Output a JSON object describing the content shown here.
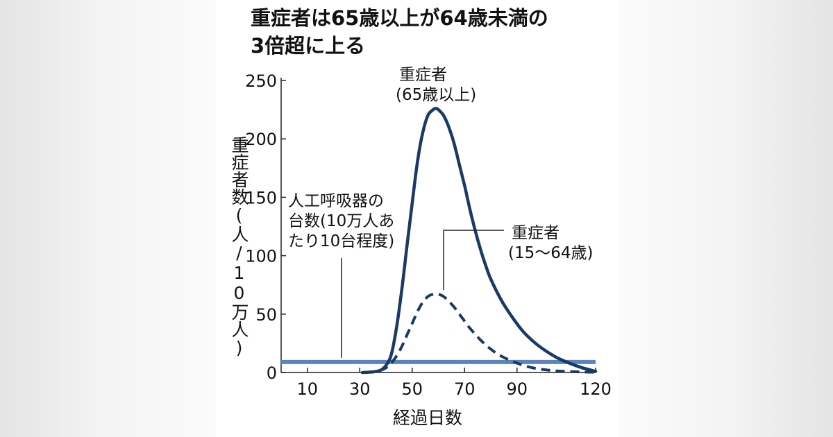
{
  "title_lines": [
    "重症者は65歳以上が64歳未満の",
    "3倍超に上る"
  ],
  "chart_data": {
    "type": "line",
    "title": "重症者は65歳以上が64歳未満の3倍超に上る",
    "xlabel": "経過日数",
    "ylabel": "重症者数(人/10万人)",
    "xlim": [
      0,
      120
    ],
    "ylim": [
      0,
      250
    ],
    "x_ticks": [
      10,
      30,
      50,
      70,
      90,
      120
    ],
    "y_ticks": [
      0,
      50,
      100,
      150,
      200,
      250
    ],
    "grid": false,
    "series": [
      {
        "name": "重症者(65歳以上)",
        "label_lines": [
          "重症者",
          "(65歳以上)"
        ],
        "style": "solid",
        "color": "#1a3a66",
        "x": [
          31,
          35,
          38,
          40,
          42,
          44,
          46,
          48,
          50,
          52,
          54,
          56,
          58,
          59,
          60,
          62,
          64,
          66,
          68,
          70,
          72,
          74,
          76,
          78,
          80,
          84,
          88,
          92,
          96,
          100,
          105,
          110,
          115,
          120
        ],
        "y": [
          0,
          0.5,
          2,
          6,
          15,
          38,
          70,
          108,
          145,
          180,
          205,
          220,
          225,
          226,
          225,
          220,
          210,
          196,
          178,
          160,
          140,
          122,
          106,
          92,
          80,
          62,
          48,
          36,
          27,
          20,
          13,
          8,
          4,
          1
        ]
      },
      {
        "name": "重症者(15~64歳)",
        "label_lines": [
          "重症者",
          "(15～64歳)"
        ],
        "style": "dashed",
        "color": "#1a3a66",
        "x": [
          32,
          36,
          38,
          40,
          42,
          44,
          46,
          48,
          50,
          52,
          54,
          56,
          58,
          60,
          62,
          64,
          66,
          68,
          70,
          72,
          76,
          80,
          84,
          90,
          96,
          102,
          108,
          114,
          120
        ],
        "y": [
          0,
          1,
          2,
          4,
          8,
          14,
          22,
          32,
          42,
          52,
          60,
          65,
          67,
          67,
          65,
          61,
          56,
          50,
          44,
          38,
          28,
          20,
          14,
          8,
          4,
          2,
          1,
          0.5,
          0.2
        ]
      },
      {
        "name": "人工呼吸器の台数(10万人あたり10台程度)",
        "label_lines": [
          "人工呼吸器の",
          "台数(10万人あ",
          "たり10台程度)"
        ],
        "style": "solid",
        "color": "#5b84bf",
        "x": [
          0,
          120
        ],
        "y": [
          9,
          9
        ]
      }
    ]
  }
}
